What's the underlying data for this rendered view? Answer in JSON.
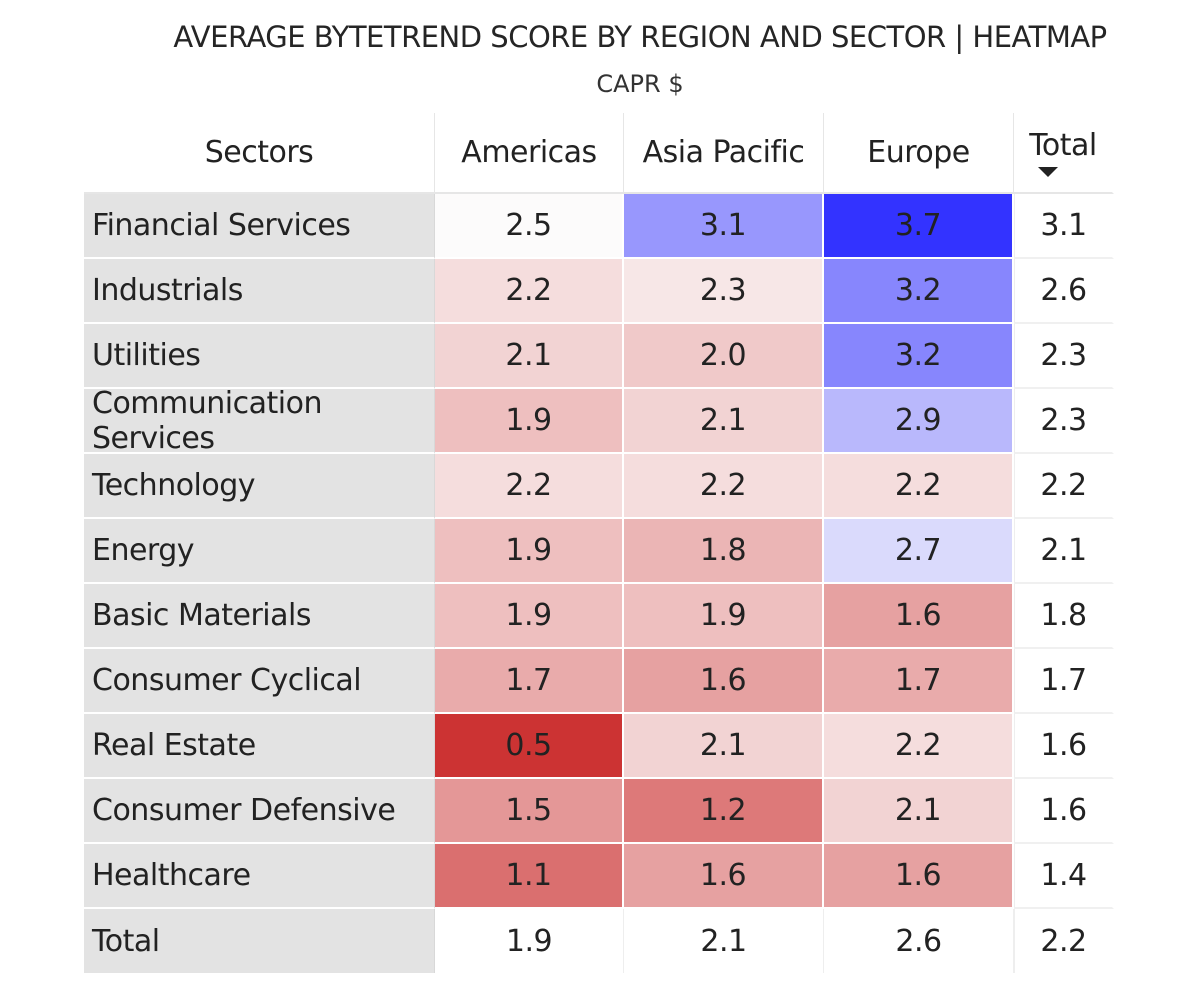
{
  "chart_data": {
    "type": "heatmap",
    "title": "AVERAGE BYTETREND SCORE BY REGION AND SECTOR | HEATMAP",
    "subtitle": "CAPR $",
    "row_header": "Sectors",
    "columns": [
      "Americas",
      "Asia Pacific",
      "Europe"
    ],
    "total_label": "Total",
    "rows": [
      {
        "sector": "Financial Services",
        "values": [
          "2.5",
          "3.1",
          "3.7"
        ],
        "total": "3.1"
      },
      {
        "sector": "Industrials",
        "values": [
          "2.2",
          "2.3",
          "3.2"
        ],
        "total": "2.6"
      },
      {
        "sector": "Utilities",
        "values": [
          "2.1",
          "2.0",
          "3.2"
        ],
        "total": "2.3"
      },
      {
        "sector": "Communication Services",
        "values": [
          "1.9",
          "2.1",
          "2.9"
        ],
        "total": "2.3"
      },
      {
        "sector": "Technology",
        "values": [
          "2.2",
          "2.2",
          "2.2"
        ],
        "total": "2.2"
      },
      {
        "sector": "Energy",
        "values": [
          "1.9",
          "1.8",
          "2.7"
        ],
        "total": "2.1"
      },
      {
        "sector": "Basic Materials",
        "values": [
          "1.9",
          "1.9",
          "1.6"
        ],
        "total": "1.8"
      },
      {
        "sector": "Consumer Cyclical",
        "values": [
          "1.7",
          "1.6",
          "1.7"
        ],
        "total": "1.7"
      },
      {
        "sector": "Real Estate",
        "values": [
          "0.5",
          "2.1",
          "2.2"
        ],
        "total": "1.6"
      },
      {
        "sector": "Consumer Defensive",
        "values": [
          "1.5",
          "1.2",
          "2.1"
        ],
        "total": "1.6"
      },
      {
        "sector": "Healthcare",
        "values": [
          "1.1",
          "1.6",
          "1.6"
        ],
        "total": "1.4"
      }
    ],
    "column_totals": [
      "1.9",
      "2.1",
      "2.6"
    ],
    "grand_total": "2.2",
    "sort": "Total descending",
    "color_scale": {
      "low": "#cc3333",
      "mid": "#fcfbfb",
      "high": "#3333ff",
      "low_value": 0.5,
      "mid_value": 2.5,
      "high_value": 3.7
    }
  }
}
